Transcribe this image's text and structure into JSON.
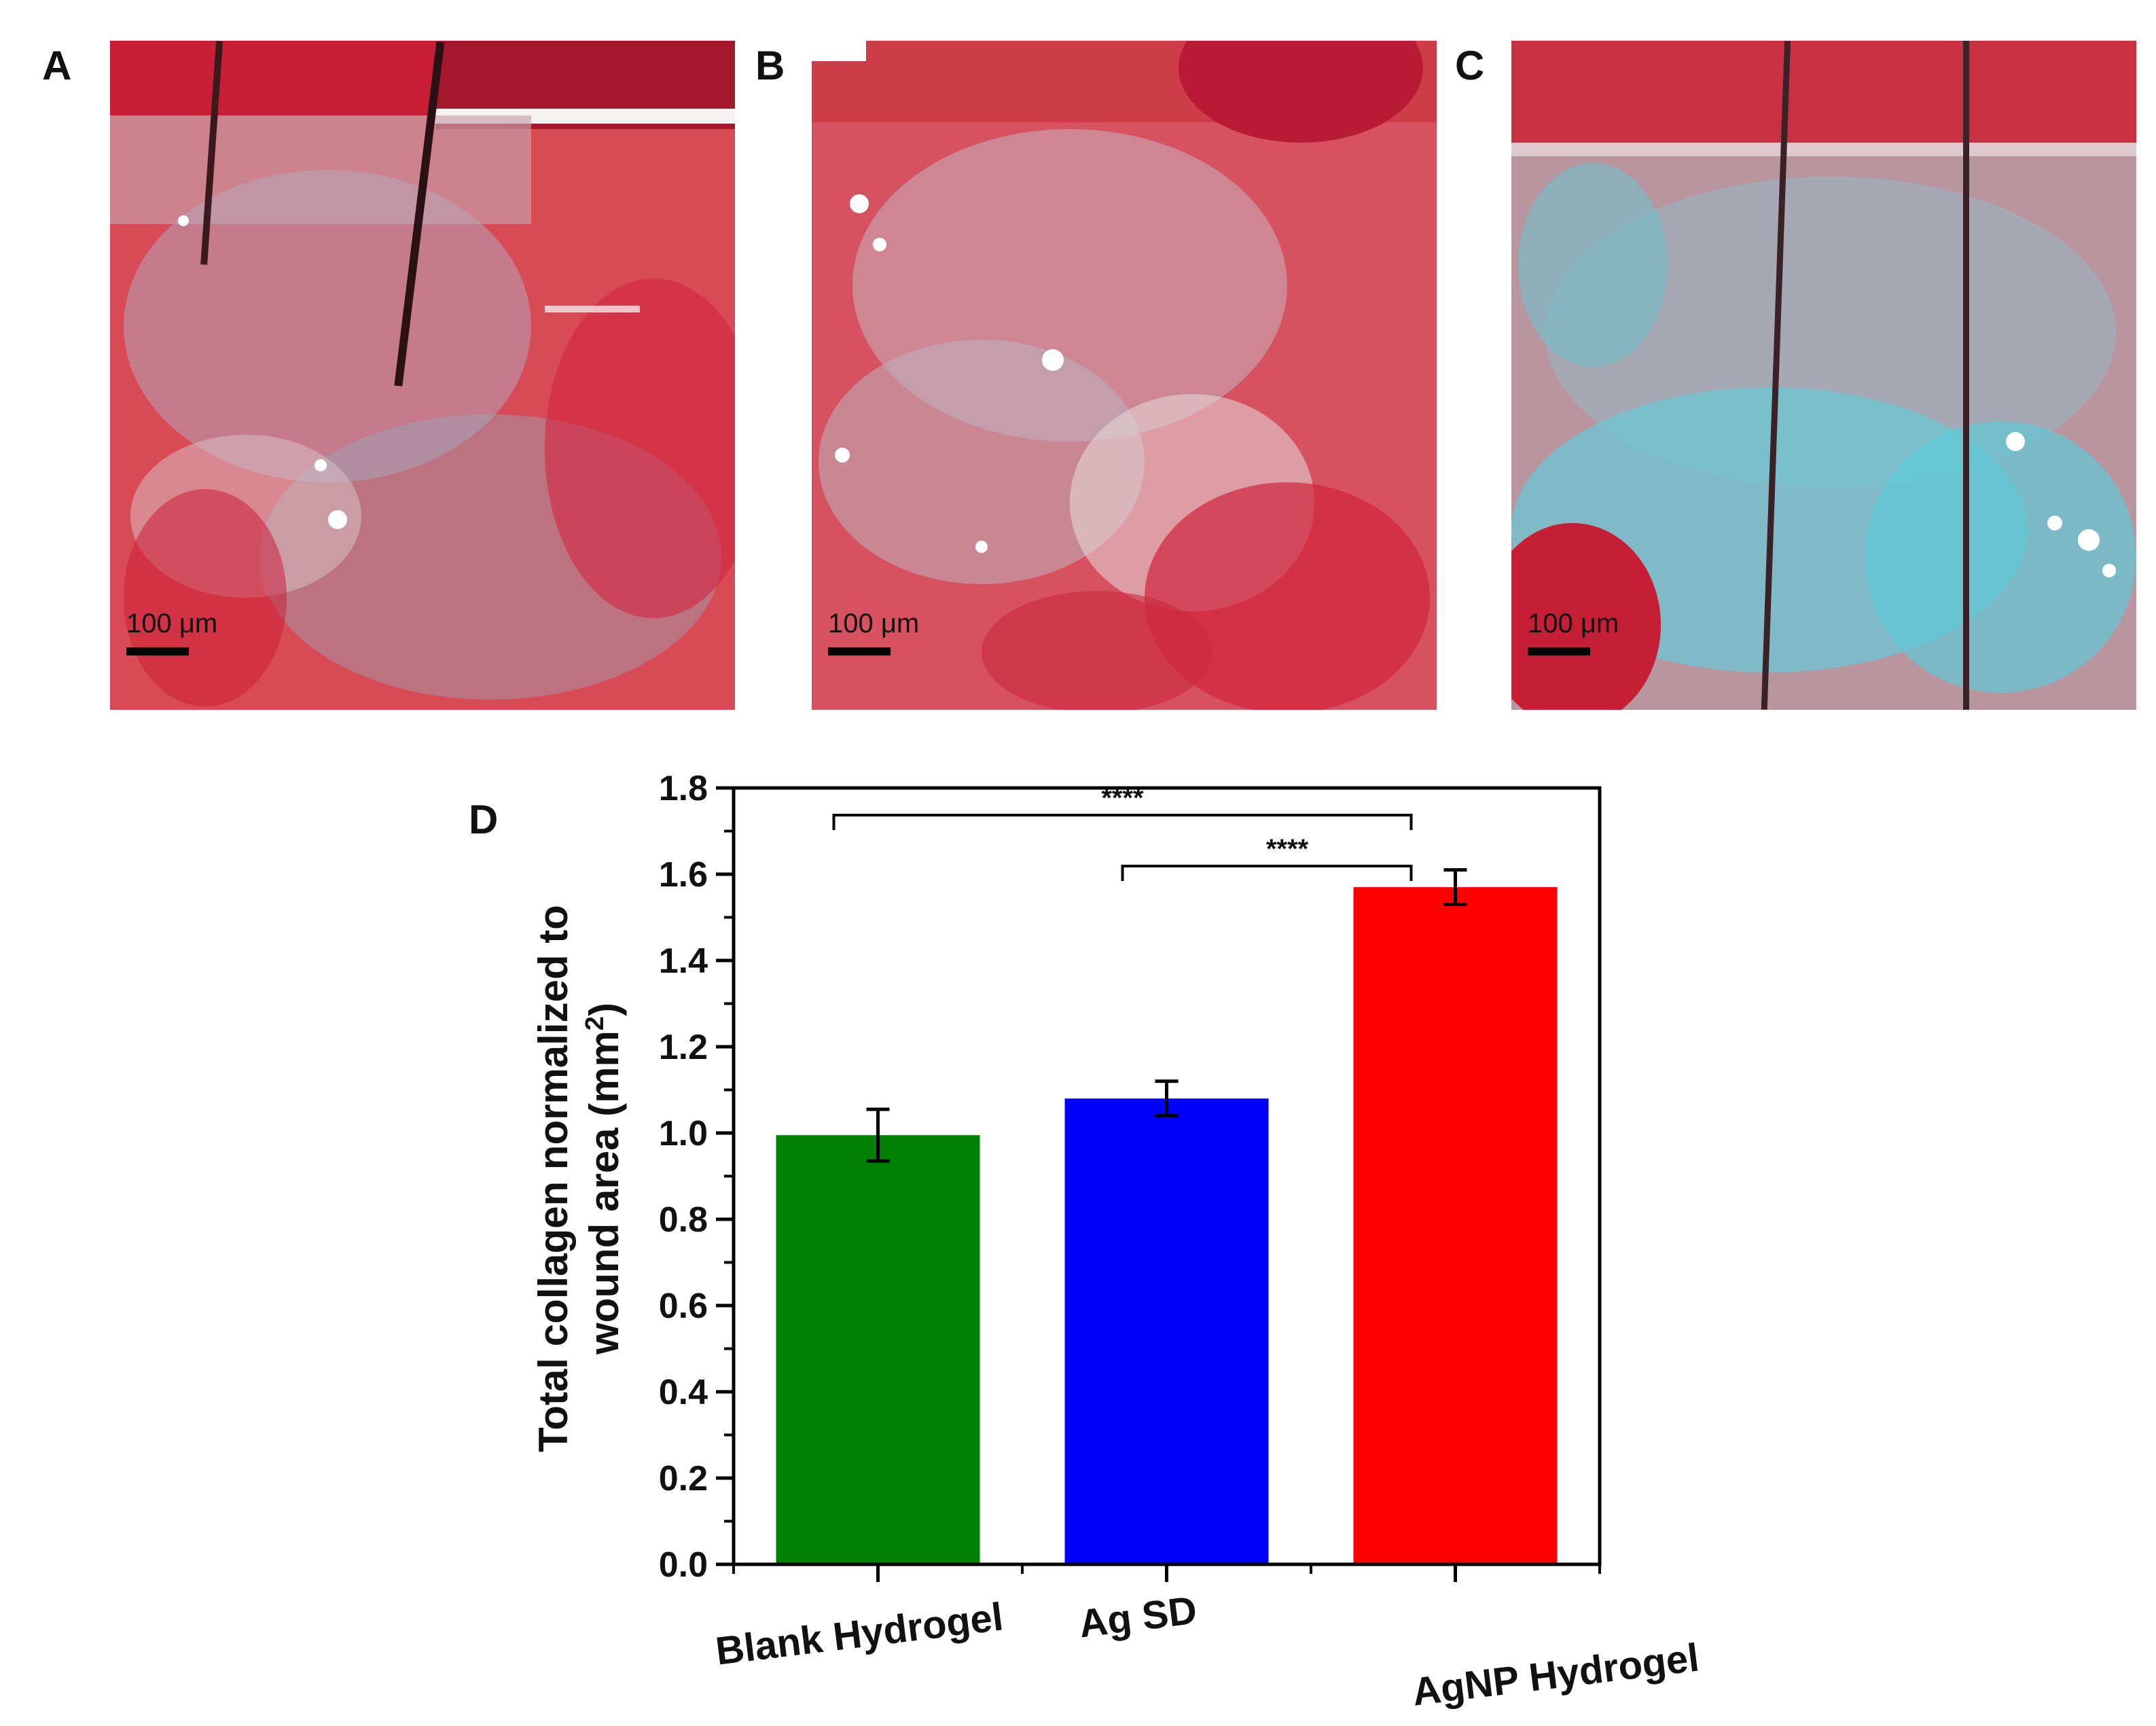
{
  "panels": {
    "a": {
      "letter": "A",
      "scalebar": "100 μm"
    },
    "b": {
      "letter": "B",
      "scalebar": "100 μm"
    },
    "c": {
      "letter": "C",
      "scalebar": "100 μm"
    },
    "d": {
      "letter": "D"
    }
  },
  "colors": {
    "blank_hydrogel": "#008000",
    "ag_sd": "#0000ff",
    "agnp_hydrogel": "#ff0000",
    "tissue_red": "#cf2a3a",
    "collagen_blue": "#5fc9d6"
  },
  "chart_data": {
    "type": "bar",
    "categories": [
      "Blank Hydrogel",
      "Ag SD",
      "AgNP Hydrogel"
    ],
    "values": [
      0.995,
      1.08,
      1.57
    ],
    "errors": [
      0.06,
      0.04,
      0.04
    ],
    "bar_colors": [
      "#008000",
      "#0000ff",
      "#ff0000"
    ],
    "title": "",
    "xlabel": "",
    "ylabel_line1": "Total collagen normalized to",
    "ylabel_line2": "wound area (mm",
    "ylabel_sup": "2",
    "ylabel_close": ")",
    "ylim": [
      0.0,
      1.8
    ],
    "yticks": [
      "0.0",
      "0.2",
      "0.4",
      "0.6",
      "0.8",
      "1.0",
      "1.2",
      "1.4",
      "1.6",
      "1.8"
    ],
    "grid": false,
    "significance": [
      {
        "from": 0,
        "to": 2,
        "label": "****"
      },
      {
        "from": 1,
        "to": 2,
        "label": "****"
      }
    ]
  }
}
